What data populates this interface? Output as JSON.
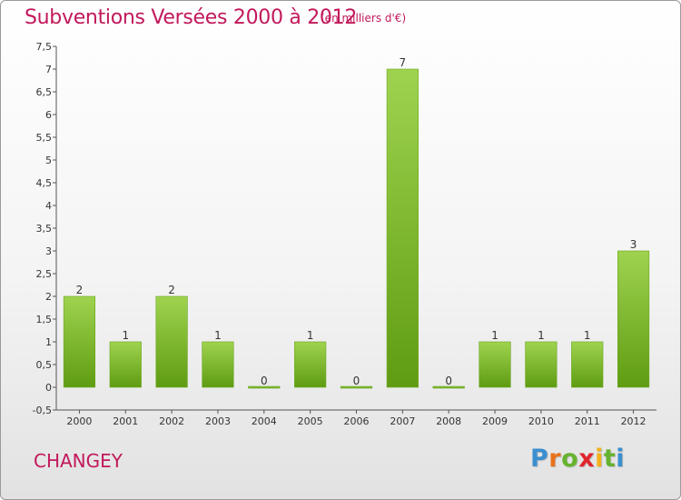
{
  "chart_data": {
    "type": "bar",
    "title": "Subventions Versées 2000 à 2012",
    "subtitle": "(en milliers d'€)",
    "categories": [
      "2000",
      "2001",
      "2002",
      "2003",
      "2004",
      "2005",
      "2006",
      "2007",
      "2008",
      "2009",
      "2010",
      "2011",
      "2012"
    ],
    "values": [
      2,
      1,
      2,
      1,
      0,
      1,
      0,
      7,
      0,
      1,
      1,
      1,
      3
    ],
    "data_labels": [
      "2",
      "1",
      "2",
      "1",
      "0",
      "1",
      "0",
      "7",
      "0",
      "1",
      "1",
      "1",
      "3"
    ],
    "ylim": [
      -0.5,
      7.5
    ],
    "y_ticks": [
      "-0,5",
      "0",
      "0,5",
      "1",
      "1,5",
      "2",
      "2,5",
      "3",
      "3,5",
      "4",
      "4,5",
      "5",
      "5,5",
      "6",
      "6,5",
      "7",
      "7,5"
    ],
    "grid": false,
    "bar_color": "#7cbb2a"
  },
  "footer": {
    "commune": "CHANGEY",
    "logo": [
      "P",
      "r",
      "o",
      "x",
      "i",
      "t",
      "i"
    ],
    "logo_colors": [
      "#3a8fd0",
      "#e8731c",
      "#66b32e",
      "#e0262e",
      "#f3b21a",
      "#66b32e",
      "#3a8fd0"
    ]
  }
}
